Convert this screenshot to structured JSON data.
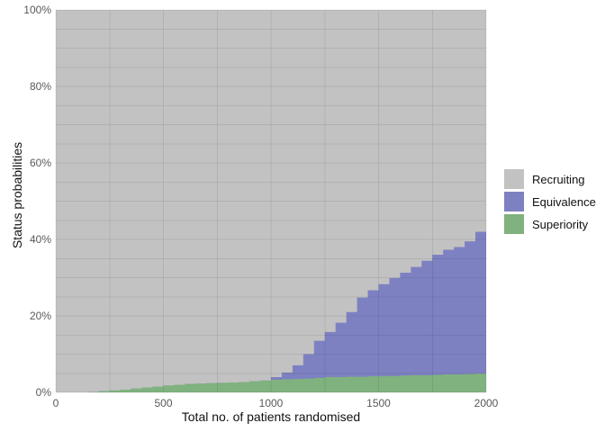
{
  "chart_data": {
    "type": "area",
    "stacked": true,
    "title": "",
    "xlabel": "Total no. of patients randomised",
    "ylabel": "Status probabilities",
    "xlim": [
      0,
      2000
    ],
    "ylim": [
      0,
      100
    ],
    "grid": "on",
    "legend_position": "right",
    "interpolation": "step-after",
    "x": [
      0,
      50,
      100,
      150,
      200,
      250,
      300,
      350,
      400,
      450,
      500,
      550,
      600,
      650,
      700,
      750,
      800,
      850,
      900,
      950,
      1000,
      1050,
      1100,
      1150,
      1200,
      1250,
      1300,
      1350,
      1400,
      1450,
      1500,
      1550,
      1600,
      1650,
      1700,
      1750,
      1800,
      1850,
      1900,
      1950,
      2000
    ],
    "series": [
      {
        "name": "Superiority",
        "color": "#7fb27e",
        "values": [
          0,
          0,
          0,
          0.1,
          0.3,
          0.5,
          0.7,
          1.0,
          1.3,
          1.5,
          1.8,
          2.0,
          2.2,
          2.3,
          2.4,
          2.5,
          2.6,
          2.7,
          2.9,
          3.1,
          3.3,
          3.4,
          3.5,
          3.6,
          3.8,
          4.0,
          4.0,
          4.1,
          4.1,
          4.2,
          4.3,
          4.3,
          4.4,
          4.5,
          4.5,
          4.6,
          4.7,
          4.7,
          4.8,
          4.9,
          5.0
        ]
      },
      {
        "name": "Equivalence",
        "color": "#7e81c1",
        "values": [
          0,
          0,
          0,
          0,
          0,
          0,
          0,
          0,
          0,
          0,
          0,
          0,
          0,
          0,
          0,
          0,
          0,
          0,
          0,
          0,
          0.7,
          1.8,
          3.6,
          6.4,
          9.7,
          11.8,
          14.2,
          16.9,
          20.7,
          22.5,
          24.0,
          25.6,
          26.9,
          28.3,
          29.9,
          31.4,
          32.6,
          33.3,
          34.7,
          37.1,
          38.5
        ]
      },
      {
        "name": "Recruiting",
        "color": "#c2c2c2",
        "values": [
          100,
          100,
          100,
          99.9,
          99.7,
          99.5,
          99.3,
          99.0,
          98.7,
          98.5,
          98.2,
          98.0,
          97.8,
          97.7,
          97.6,
          97.5,
          97.4,
          97.3,
          97.1,
          96.9,
          96.0,
          94.8,
          92.9,
          90.0,
          86.5,
          84.2,
          81.8,
          79.0,
          75.2,
          73.3,
          71.7,
          70.1,
          68.7,
          67.2,
          65.6,
          64.0,
          62.7,
          62.0,
          60.5,
          58.0,
          56.5
        ]
      }
    ]
  },
  "axes": {
    "x_ticks": [
      {
        "value": 0,
        "label": "0"
      },
      {
        "value": 500,
        "label": "500"
      },
      {
        "value": 1000,
        "label": "1000"
      },
      {
        "value": 1500,
        "label": "1500"
      },
      {
        "value": 2000,
        "label": "2000"
      }
    ],
    "y_ticks": [
      {
        "value": 0,
        "label": "0%"
      },
      {
        "value": 20,
        "label": "20%"
      },
      {
        "value": 40,
        "label": "40%"
      },
      {
        "value": 60,
        "label": "60%"
      },
      {
        "value": 80,
        "label": "80%"
      },
      {
        "value": 100,
        "label": "100%"
      }
    ],
    "x_minor_step": 250,
    "y_minor_step": 5,
    "tick_label_color": "#595959",
    "gridline_color": "rgba(0,0,0,0.08)"
  },
  "legend": {
    "items": [
      {
        "label": "Recruiting",
        "color": "#c2c2c2"
      },
      {
        "label": "Equivalence",
        "color": "#7e81c1"
      },
      {
        "label": "Superiority",
        "color": "#7fb27e"
      }
    ]
  }
}
